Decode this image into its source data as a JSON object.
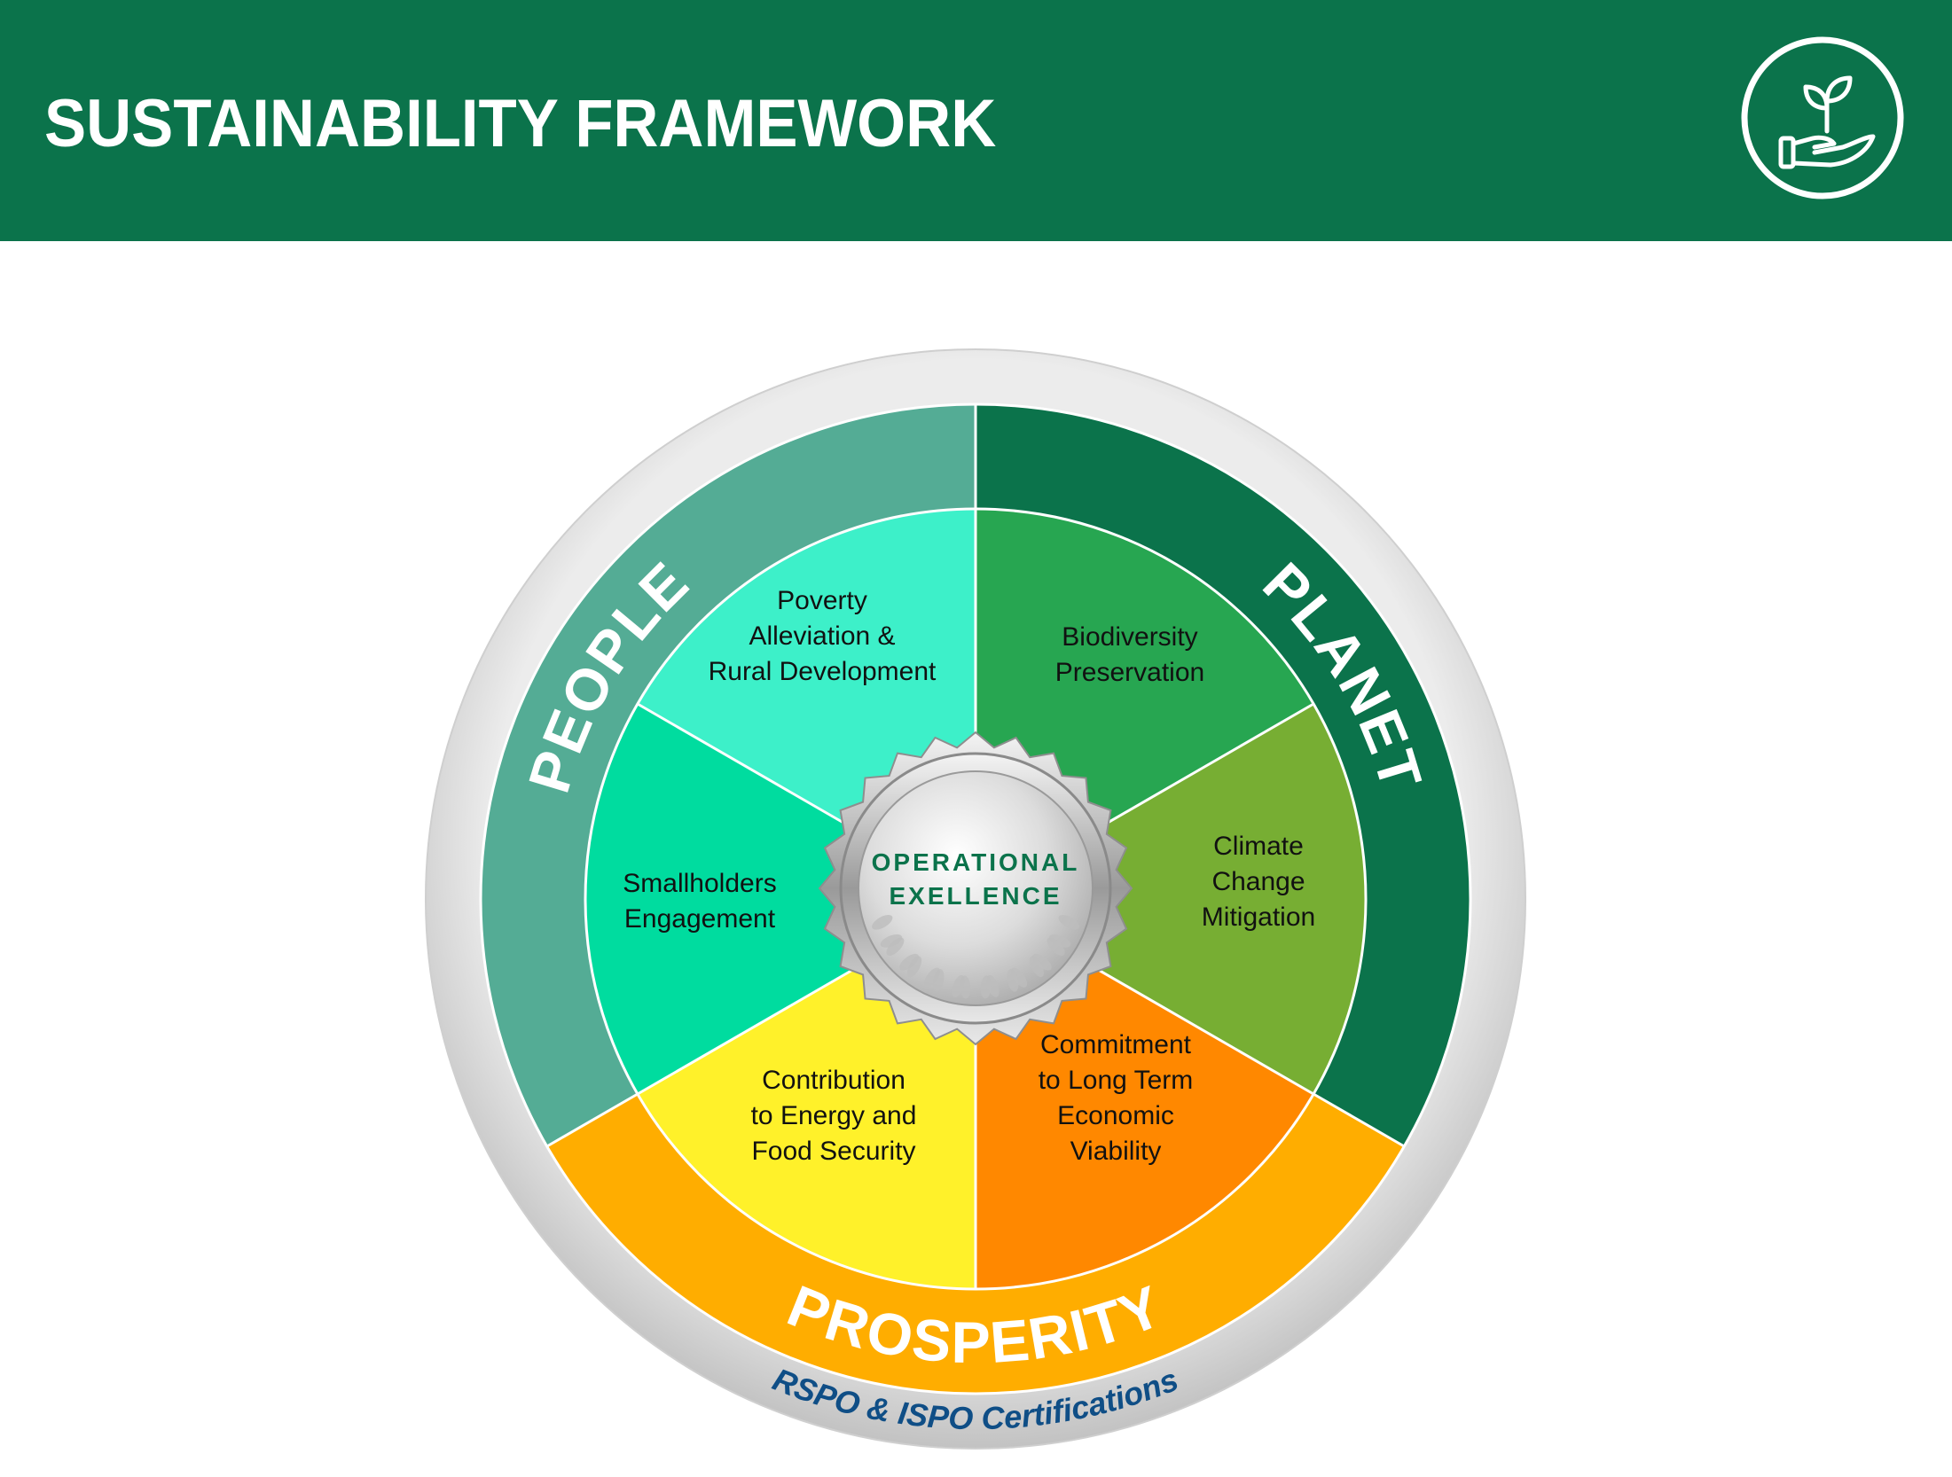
{
  "header": {
    "title": "SUSTAINABILITY FRAMEWORK",
    "icon": "plant-in-hand-icon"
  },
  "framework": {
    "pillars": {
      "people": {
        "label": "PEOPLE",
        "color": "#54ac95"
      },
      "planet": {
        "label": "PLANET",
        "color": "#0b734b"
      },
      "prosperity": {
        "label": "PROSPERITY",
        "color": "#ffad00"
      }
    },
    "segments": [
      {
        "label_lines": [
          "Poverty",
          "Alleviation &",
          "Rural Development"
        ],
        "color": "#3df0c9"
      },
      {
        "label_lines": [
          "Biodiversity",
          "Preservation"
        ],
        "color": "#27a651"
      },
      {
        "label_lines": [
          "Climate",
          "Change",
          "Mitigation"
        ],
        "color": "#77ae33"
      },
      {
        "label_lines": [
          "Commitment",
          "to Long Term",
          "Economic",
          "Viability"
        ],
        "color": "#ff8800"
      },
      {
        "label_lines": [
          "Contribution",
          "to Energy and",
          "Food Security"
        ],
        "color": "#fff12a"
      },
      {
        "label_lines": [
          "Smallholders",
          "Engagement"
        ],
        "color": "#00dc9f"
      }
    ],
    "center": {
      "label_lines": [
        "OPERATIONAL",
        "EXELLENCE"
      ],
      "text_color": "#0b734b"
    },
    "certification": {
      "label": "RSPO & ISPO Certifications",
      "text_color": "#0f4e86"
    }
  }
}
